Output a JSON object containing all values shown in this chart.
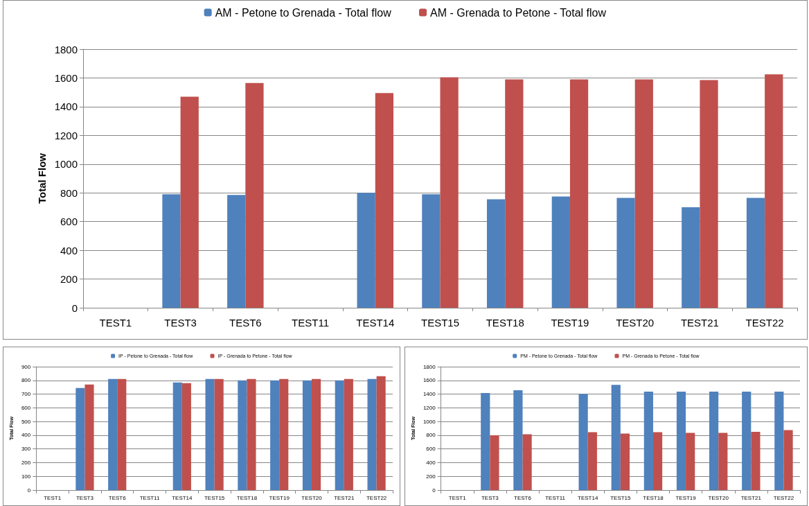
{
  "chart_data": [
    {
      "type": "bar",
      "categories": [
        "TEST1",
        "TEST3",
        "TEST6",
        "TEST11",
        "TEST14",
        "TEST15",
        "TEST18",
        "TEST19",
        "TEST20",
        "TEST21",
        "TEST22"
      ],
      "ylabel": "Total Flow",
      "ylim": [
        0,
        1800
      ],
      "yticks": [
        0,
        200,
        400,
        600,
        800,
        1000,
        1200,
        1400,
        1600,
        1800
      ],
      "grid": "y",
      "legend": "top",
      "series": [
        {
          "name": "AM - Petone to Grenada - Total flow",
          "color": "#4f81bd",
          "values": [
            null,
            790,
            785,
            null,
            800,
            790,
            755,
            775,
            765,
            700,
            765
          ]
        },
        {
          "name": "AM - Grenada to Petone - Total flow",
          "color": "#c0504d",
          "values": [
            null,
            1470,
            1565,
            null,
            1495,
            1605,
            1590,
            1590,
            1590,
            1585,
            1625
          ]
        }
      ]
    },
    {
      "type": "bar",
      "categories": [
        "TEST1",
        "TEST3",
        "TEST6",
        "TEST11",
        "TEST14",
        "TEST15",
        "TEST18",
        "TEST19",
        "TEST20",
        "TEST21",
        "TEST22"
      ],
      "ylabel": "Total Flow",
      "ylim": [
        0,
        900
      ],
      "yticks": [
        0,
        100,
        200,
        300,
        400,
        500,
        600,
        700,
        800,
        900
      ],
      "grid": "y",
      "legend": "top",
      "series": [
        {
          "name": "IP - Petone to Grenada - Total flow",
          "color": "#4f81bd",
          "values": [
            null,
            745,
            810,
            null,
            785,
            810,
            800,
            800,
            800,
            800,
            810
          ]
        },
        {
          "name": "IP - Grenada to Petone - Total flow",
          "color": "#c0504d",
          "values": [
            null,
            770,
            810,
            null,
            780,
            810,
            810,
            810,
            810,
            810,
            830
          ]
        }
      ]
    },
    {
      "type": "bar",
      "categories": [
        "TEST1",
        "TEST3",
        "TEST6",
        "TEST11",
        "TEST14",
        "TEST15",
        "TEST18",
        "TEST19",
        "TEST20",
        "TEST21",
        "TEST22"
      ],
      "ylabel": "Total Flow",
      "ylim": [
        0,
        1800
      ],
      "yticks": [
        0,
        200,
        400,
        600,
        800,
        1000,
        1200,
        1400,
        1600,
        1800
      ],
      "grid": "y",
      "legend": "top",
      "series": [
        {
          "name": "PM - Petone to Grenada - Total flow",
          "color": "#4f81bd",
          "values": [
            null,
            1415,
            1455,
            null,
            1400,
            1535,
            1435,
            1435,
            1435,
            1435,
            1435
          ]
        },
        {
          "name": "PM - Grenada to Petone - Total flow",
          "color": "#c0504d",
          "values": [
            null,
            800,
            815,
            null,
            845,
            825,
            845,
            835,
            835,
            850,
            875
          ]
        }
      ]
    }
  ]
}
